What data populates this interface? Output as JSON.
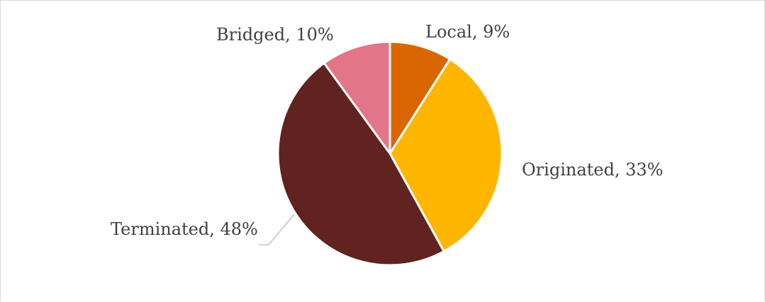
{
  "chart_data": {
    "type": "pie",
    "title": "",
    "start_angle_deg": 0,
    "direction": "clockwise",
    "slices": [
      {
        "name": "Local",
        "value": 9,
        "label": "Local, 9%",
        "color": "#D96600"
      },
      {
        "name": "Originated",
        "value": 33,
        "label": "Originated, 33%",
        "color": "#FFB600"
      },
      {
        "name": "Terminated",
        "value": 48,
        "label": "Terminated, 48%",
        "color": "#602320"
      },
      {
        "name": "Bridged",
        "value": 10,
        "label": "Bridged, 10%",
        "color": "#E27588"
      }
    ],
    "legend": "none",
    "slice_border_color": "#FFFFFF"
  }
}
